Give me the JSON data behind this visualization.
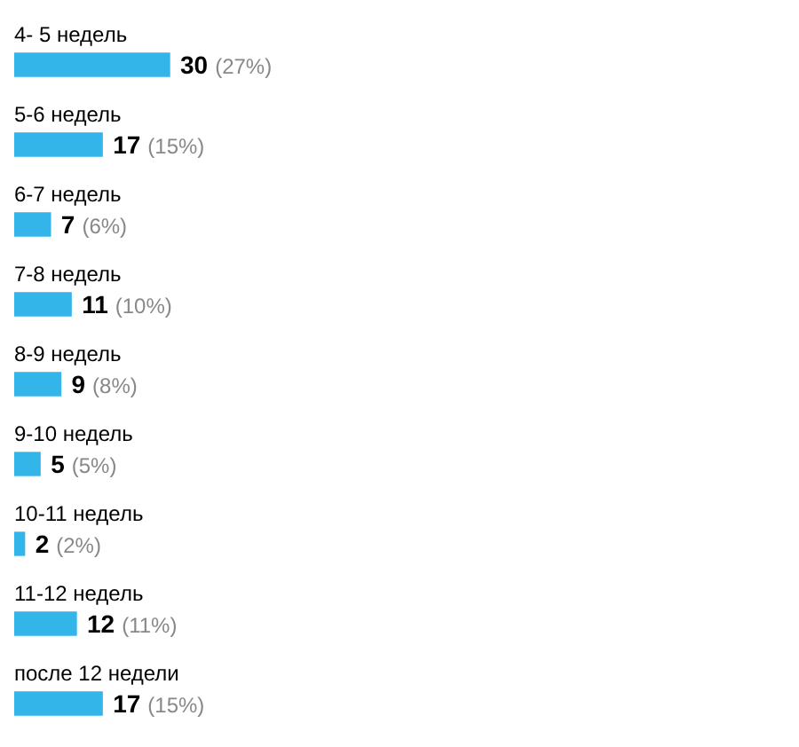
{
  "chart_data": {
    "type": "bar",
    "orientation": "horizontal",
    "categories": [
      "4- 5 недель",
      "5-6 недель",
      "6-7 недель",
      "7-8 недель",
      "8-9 недель",
      "9-10 недель",
      "10-11 недель",
      "11-12 недель",
      "после 12 недели"
    ],
    "values": [
      30,
      17,
      7,
      11,
      9,
      5,
      2,
      12,
      17
    ],
    "color": "#33b5ea",
    "value_labels": [
      "30 (27%)",
      "17 (15%)",
      "7 (6%)",
      "11 (10%)",
      "9 (8%)",
      "5 (5%)",
      "2 (2%)",
      "12 (11%)",
      "17 (15%)"
    ]
  }
}
